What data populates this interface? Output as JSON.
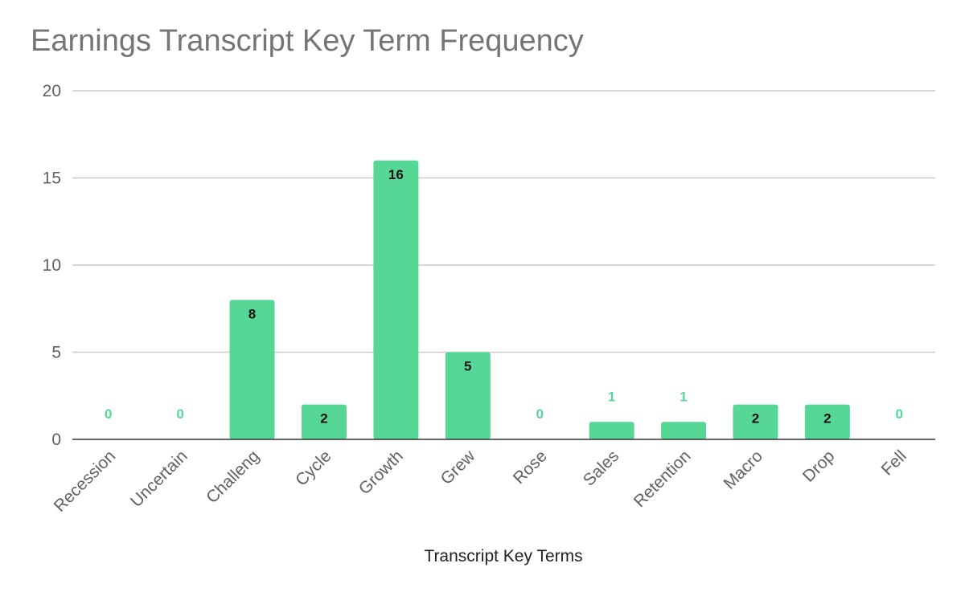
{
  "chart_data": {
    "type": "bar",
    "title": "Earnings Transcript Key Term Frequency",
    "xlabel": "Transcript Key Terms",
    "ylabel": "",
    "categories": [
      "Recession",
      "Uncertain",
      "Challeng",
      "Cycle",
      "Growth",
      "Grew",
      "Rose",
      "Sales",
      "Retention",
      "Macro",
      "Drop",
      "Fell"
    ],
    "values": [
      0,
      0,
      8,
      2,
      16,
      5,
      0,
      1,
      1,
      2,
      2,
      0
    ],
    "ylim": [
      0,
      20
    ],
    "yticks": [
      0,
      5,
      10,
      15,
      20
    ],
    "grid": true,
    "legend": "none",
    "bar_color": "#57d795",
    "label_inside_color": "#111111",
    "label_outside_color": "#57d795"
  }
}
